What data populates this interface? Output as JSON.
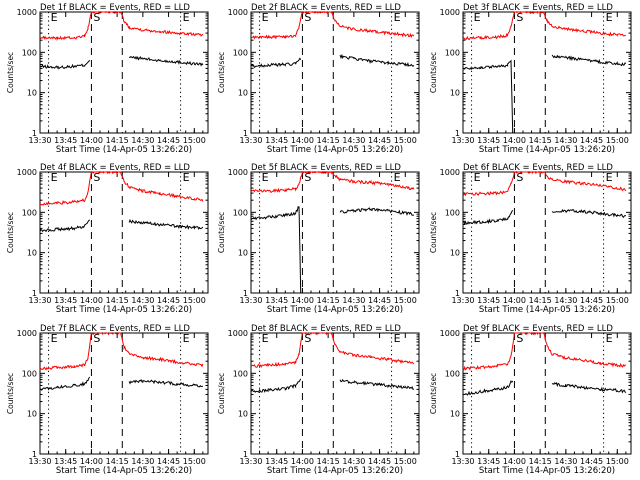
{
  "figure": {
    "xlabel": "Start Time (14-Apr-05 13:26:20)",
    "ylabel": "Counts/sec",
    "time_ticks": [
      "13:30",
      "13:45",
      "14:00",
      "14:15",
      "14:30",
      "14:45",
      "15:00"
    ],
    "y_ticks": [
      "1",
      "10",
      "100",
      "1000"
    ]
  },
  "colors": {
    "events": "#000000",
    "lld": "#ff0000",
    "axes": "#000000",
    "background": "#ffffff"
  },
  "chart_data": [
    {
      "type": "line",
      "title": "Det 1f BLACK = Events, RED = LLD",
      "xlabel": "Start Time (14-Apr-05 13:26:20)",
      "ylabel": "Counts/sec",
      "ylog": true,
      "ylim": [
        1,
        1000
      ],
      "xlim": [
        "13:30",
        "15:08"
      ],
      "markers": [
        {
          "label": "E",
          "time": "13:35",
          "style": "dotted"
        },
        {
          "label": "S",
          "time": "14:00",
          "style": "dashed"
        },
        {
          "label": "",
          "time": "14:18",
          "style": "dashed"
        },
        {
          "label": "E",
          "time": "14:52",
          "style": "dotted"
        }
      ],
      "series": [
        {
          "name": "Events",
          "color": "#000000",
          "time": [
            "13:30",
            "13:40",
            "13:50",
            "13:56",
            "13:59",
            "14:00",
            "14:19",
            "14:22",
            "14:30",
            "14:40",
            "14:50",
            "15:00",
            "15:05"
          ],
          "values": [
            45,
            42,
            45,
            48,
            65,
            null,
            null,
            75,
            70,
            62,
            58,
            52,
            50
          ]
        },
        {
          "name": "LLD",
          "color": "#ff0000",
          "time": [
            "13:30",
            "13:40",
            "13:50",
            "13:56",
            "13:58",
            "14:00",
            "14:17",
            "14:19",
            "14:22",
            "14:30",
            "14:40",
            "14:50",
            "15:00",
            "15:05"
          ],
          "values": [
            230,
            225,
            230,
            250,
            400,
            1000,
            1000,
            600,
            420,
            360,
            330,
            300,
            280,
            270
          ]
        }
      ]
    },
    {
      "type": "line",
      "title": "Det 2f BLACK = Events, RED = LLD",
      "xlabel": "Start Time (14-Apr-05 13:26:20)",
      "ylabel": "Counts/sec",
      "ylog": true,
      "ylim": [
        1,
        1000
      ],
      "xlim": [
        "13:30",
        "15:08"
      ],
      "markers": [
        {
          "label": "E",
          "time": "13:35",
          "style": "dotted"
        },
        {
          "label": "S",
          "time": "14:00",
          "style": "dashed"
        },
        {
          "label": "",
          "time": "14:18",
          "style": "dashed"
        },
        {
          "label": "E",
          "time": "14:52",
          "style": "dotted"
        }
      ],
      "series": [
        {
          "name": "Events",
          "color": "#000000",
          "time": [
            "13:30",
            "13:40",
            "13:50",
            "13:56",
            "13:59",
            "14:00",
            "14:19",
            "14:22",
            "14:30",
            "14:40",
            "14:50",
            "15:00",
            "15:05"
          ],
          "values": [
            45,
            48,
            50,
            52,
            70,
            null,
            null,
            80,
            70,
            60,
            55,
            50,
            48
          ]
        },
        {
          "name": "LLD",
          "color": "#ff0000",
          "time": [
            "13:30",
            "13:40",
            "13:50",
            "13:56",
            "13:58",
            "14:00",
            "14:17",
            "14:19",
            "14:22",
            "14:30",
            "14:40",
            "14:50",
            "15:00",
            "15:05"
          ],
          "values": [
            230,
            240,
            245,
            260,
            420,
            1000,
            1000,
            620,
            440,
            370,
            330,
            300,
            270,
            260
          ]
        }
      ]
    },
    {
      "type": "line",
      "title": "Det 3f BLACK = Events, RED = LLD",
      "xlabel": "Start Time (14-Apr-05 13:26:20)",
      "ylabel": "Counts/sec",
      "ylog": true,
      "ylim": [
        1,
        1000
      ],
      "xlim": [
        "13:30",
        "15:08"
      ],
      "markers": [
        {
          "label": "E",
          "time": "13:35",
          "style": "dotted"
        },
        {
          "label": "S",
          "time": "14:00",
          "style": "dashed"
        },
        {
          "label": "",
          "time": "14:18",
          "style": "dashed"
        },
        {
          "label": "E",
          "time": "14:52",
          "style": "dotted"
        }
      ],
      "series": [
        {
          "name": "Events",
          "color": "#000000",
          "time": [
            "13:30",
            "13:40",
            "13:50",
            "13:56",
            "13:58",
            "13:59",
            "14:19",
            "14:22",
            "14:30",
            "14:40",
            "14:50",
            "15:00",
            "15:05"
          ],
          "values": [
            40,
            42,
            45,
            48,
            60,
            1,
            null,
            80,
            75,
            65,
            58,
            52,
            50
          ]
        },
        {
          "name": "LLD",
          "color": "#ff0000",
          "time": [
            "13:30",
            "13:40",
            "13:50",
            "13:56",
            "13:58",
            "14:00",
            "14:17",
            "14:19",
            "14:22",
            "14:30",
            "14:40",
            "14:50",
            "15:00",
            "15:05"
          ],
          "values": [
            220,
            230,
            240,
            260,
            420,
            1000,
            1000,
            620,
            450,
            380,
            340,
            300,
            270,
            260
          ]
        }
      ]
    },
    {
      "type": "line",
      "title": "Det 4f BLACK = Events, RED = LLD",
      "xlabel": "Start Time (14-Apr-05 13:26:20)",
      "ylabel": "Counts/sec",
      "ylog": true,
      "ylim": [
        1,
        1000
      ],
      "xlim": [
        "13:30",
        "15:08"
      ],
      "markers": [
        {
          "label": "E",
          "time": "13:35",
          "style": "dotted"
        },
        {
          "label": "S",
          "time": "14:00",
          "style": "dashed"
        },
        {
          "label": "",
          "time": "14:18",
          "style": "dashed"
        },
        {
          "label": "E",
          "time": "14:52",
          "style": "dotted"
        }
      ],
      "series": [
        {
          "name": "Events",
          "color": "#000000",
          "time": [
            "13:30",
            "13:40",
            "13:50",
            "13:56",
            "13:59",
            "14:00",
            "14:19",
            "14:22",
            "14:30",
            "14:40",
            "14:50",
            "15:00",
            "15:05"
          ],
          "values": [
            35,
            38,
            40,
            45,
            70,
            null,
            null,
            60,
            55,
            50,
            45,
            42,
            40
          ]
        },
        {
          "name": "LLD",
          "color": "#ff0000",
          "time": [
            "13:30",
            "13:40",
            "13:50",
            "13:56",
            "13:58",
            "14:00",
            "14:17",
            "14:19",
            "14:22",
            "14:30",
            "14:40",
            "14:50",
            "15:00",
            "15:05"
          ],
          "values": [
            160,
            170,
            180,
            200,
            320,
            1000,
            1000,
            600,
            420,
            340,
            290,
            250,
            220,
            200
          ]
        }
      ]
    },
    {
      "type": "line",
      "title": "Det 5f BLACK = Events, RED = LLD",
      "xlabel": "Start Time (14-Apr-05 13:26:20)",
      "ylabel": "Counts/sec",
      "ylog": true,
      "ylim": [
        1,
        1000
      ],
      "xlim": [
        "13:30",
        "15:08"
      ],
      "markers": [
        {
          "label": "E",
          "time": "13:35",
          "style": "dotted"
        },
        {
          "label": "S",
          "time": "14:00",
          "style": "dashed"
        },
        {
          "label": "",
          "time": "14:18",
          "style": "dashed"
        },
        {
          "label": "E",
          "time": "14:52",
          "style": "dotted"
        }
      ],
      "series": [
        {
          "name": "Events",
          "color": "#000000",
          "time": [
            "13:30",
            "13:40",
            "13:50",
            "13:56",
            "13:58",
            "13:59",
            "14:19",
            "14:22",
            "14:30",
            "14:40",
            "14:50",
            "15:00",
            "15:05"
          ],
          "values": [
            70,
            75,
            85,
            95,
            140,
            1,
            null,
            100,
            110,
            120,
            110,
            95,
            90
          ]
        },
        {
          "name": "LLD",
          "color": "#ff0000",
          "time": [
            "13:30",
            "13:40",
            "13:50",
            "13:56",
            "13:58",
            "14:00",
            "14:17",
            "14:19",
            "14:22",
            "14:30",
            "14:40",
            "14:50",
            "15:00",
            "15:05"
          ],
          "values": [
            330,
            340,
            360,
            380,
            500,
            1000,
            1000,
            800,
            650,
            580,
            550,
            500,
            420,
            380
          ]
        }
      ]
    },
    {
      "type": "line",
      "title": "Det 6f BLACK = Events, RED = LLD",
      "xlabel": "Start Time (14-Apr-05 13:26:20)",
      "ylabel": "Counts/sec",
      "ylog": true,
      "ylim": [
        1,
        1000
      ],
      "xlim": [
        "13:30",
        "15:08"
      ],
      "markers": [
        {
          "label": "E",
          "time": "13:35",
          "style": "dotted"
        },
        {
          "label": "S",
          "time": "14:00",
          "style": "dashed"
        },
        {
          "label": "",
          "time": "14:18",
          "style": "dashed"
        },
        {
          "label": "E",
          "time": "14:52",
          "style": "dotted"
        }
      ],
      "series": [
        {
          "name": "Events",
          "color": "#000000",
          "time": [
            "13:30",
            "13:40",
            "13:50",
            "13:56",
            "13:59",
            "14:00",
            "14:19",
            "14:22",
            "14:30",
            "14:40",
            "14:50",
            "15:00",
            "15:05"
          ],
          "values": [
            55,
            58,
            62,
            70,
            110,
            null,
            null,
            100,
            110,
            105,
            95,
            85,
            80
          ]
        },
        {
          "name": "LLD",
          "color": "#ff0000",
          "time": [
            "13:30",
            "13:40",
            "13:50",
            "13:56",
            "13:58",
            "14:00",
            "14:17",
            "14:19",
            "14:22",
            "14:30",
            "14:40",
            "14:50",
            "15:00",
            "15:05"
          ],
          "values": [
            280,
            290,
            300,
            330,
            500,
            1000,
            1000,
            780,
            640,
            570,
            520,
            470,
            400,
            360
          ]
        }
      ]
    },
    {
      "type": "line",
      "title": "Det 7f BLACK = Events, RED = LLD",
      "xlabel": "Start Time (14-Apr-05 13:26:20)",
      "ylabel": "Counts/sec",
      "ylog": true,
      "ylim": [
        1,
        1000
      ],
      "xlim": [
        "13:30",
        "15:08"
      ],
      "markers": [
        {
          "label": "E",
          "time": "13:35",
          "style": "dotted"
        },
        {
          "label": "S",
          "time": "14:00",
          "style": "dashed"
        },
        {
          "label": "",
          "time": "14:18",
          "style": "dashed"
        },
        {
          "label": "E",
          "time": "14:52",
          "style": "dotted"
        }
      ],
      "series": [
        {
          "name": "Events",
          "color": "#000000",
          "time": [
            "13:30",
            "13:40",
            "13:50",
            "13:56",
            "13:59",
            "14:00",
            "14:19",
            "14:22",
            "14:30",
            "14:40",
            "14:50",
            "15:00",
            "15:05"
          ],
          "values": [
            40,
            45,
            50,
            55,
            80,
            null,
            null,
            60,
            65,
            60,
            55,
            50,
            48
          ]
        },
        {
          "name": "LLD",
          "color": "#ff0000",
          "time": [
            "13:30",
            "13:40",
            "13:50",
            "13:56",
            "13:58",
            "14:00",
            "14:17",
            "14:19",
            "14:22",
            "14:30",
            "14:40",
            "14:50",
            "15:00",
            "15:05"
          ],
          "values": [
            130,
            140,
            150,
            160,
            250,
            1000,
            1000,
            450,
            300,
            250,
            220,
            190,
            170,
            160
          ]
        }
      ]
    },
    {
      "type": "line",
      "title": "Det 8f BLACK = Events, RED = LLD",
      "xlabel": "Start Time (14-Apr-05 13:26:20)",
      "ylabel": "Counts/sec",
      "ylog": true,
      "ylim": [
        1,
        1000
      ],
      "xlim": [
        "13:30",
        "15:08"
      ],
      "markers": [
        {
          "label": "E",
          "time": "13:35",
          "style": "dotted"
        },
        {
          "label": "S",
          "time": "14:00",
          "style": "dashed"
        },
        {
          "label": "",
          "time": "14:18",
          "style": "dashed"
        },
        {
          "label": "E",
          "time": "14:52",
          "style": "dotted"
        }
      ],
      "series": [
        {
          "name": "Events",
          "color": "#000000",
          "time": [
            "13:30",
            "13:40",
            "13:50",
            "13:56",
            "13:59",
            "14:00",
            "14:19",
            "14:22",
            "14:30",
            "14:40",
            "14:50",
            "15:00",
            "15:05"
          ],
          "values": [
            35,
            38,
            42,
            50,
            75,
            null,
            null,
            65,
            60,
            55,
            50,
            45,
            42
          ]
        },
        {
          "name": "LLD",
          "color": "#ff0000",
          "time": [
            "13:30",
            "13:40",
            "13:50",
            "13:56",
            "13:58",
            "14:00",
            "14:17",
            "14:19",
            "14:22",
            "14:30",
            "14:40",
            "14:50",
            "15:00",
            "15:05"
          ],
          "values": [
            150,
            160,
            170,
            190,
            300,
            1000,
            1000,
            500,
            340,
            280,
            250,
            220,
            190,
            180
          ]
        }
      ]
    },
    {
      "type": "line",
      "title": "Det 9f BLACK = Events, RED = LLD",
      "xlabel": "Start Time (14-Apr-05 13:26:20)",
      "ylabel": "Counts/sec",
      "ylog": true,
      "ylim": [
        1,
        1000
      ],
      "xlim": [
        "13:30",
        "15:08"
      ],
      "markers": [
        {
          "label": "E",
          "time": "13:35",
          "style": "dotted"
        },
        {
          "label": "S",
          "time": "14:00",
          "style": "dashed"
        },
        {
          "label": "",
          "time": "14:18",
          "style": "dashed"
        },
        {
          "label": "E",
          "time": "14:52",
          "style": "dotted"
        }
      ],
      "series": [
        {
          "name": "Events",
          "color": "#000000",
          "time": [
            "13:30",
            "13:40",
            "13:50",
            "13:56",
            "13:59",
            "14:00",
            "14:19",
            "14:22",
            "14:30",
            "14:40",
            "14:50",
            "15:00",
            "15:05"
          ],
          "values": [
            30,
            35,
            40,
            45,
            70,
            null,
            null,
            55,
            50,
            45,
            40,
            38,
            35
          ]
        },
        {
          "name": "LLD",
          "color": "#ff0000",
          "time": [
            "13:30",
            "13:40",
            "13:50",
            "13:56",
            "13:58",
            "14:00",
            "14:17",
            "14:19",
            "14:22",
            "14:30",
            "14:40",
            "14:50",
            "15:00",
            "15:05"
          ],
          "values": [
            130,
            140,
            150,
            170,
            260,
            1000,
            1000,
            480,
            300,
            240,
            210,
            180,
            160,
            150
          ]
        }
      ]
    }
  ]
}
